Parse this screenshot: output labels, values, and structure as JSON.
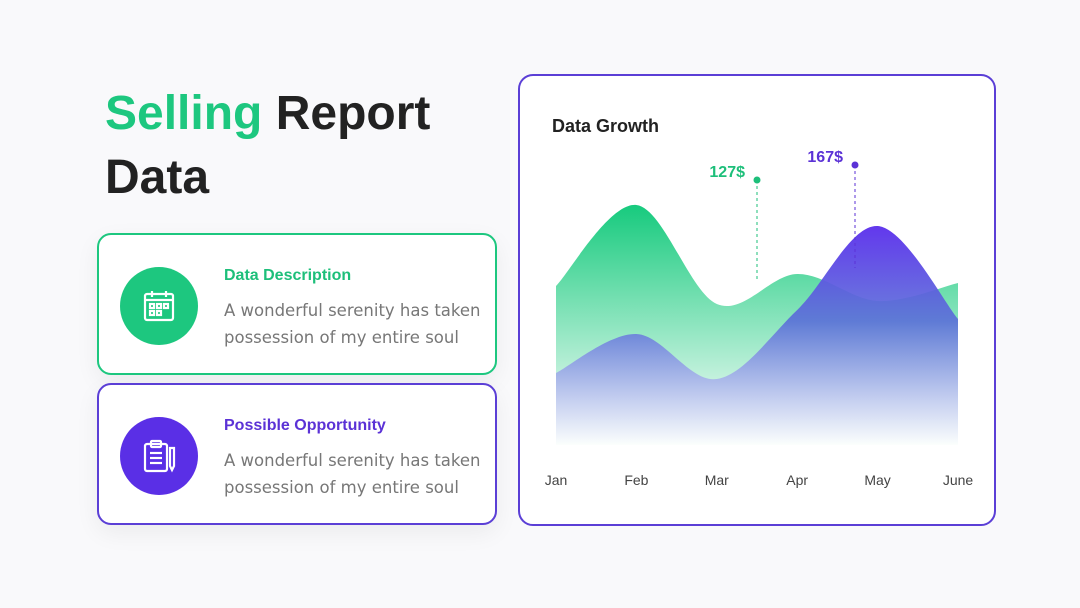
{
  "title": {
    "highlight": "Selling",
    "rest": "Report Data"
  },
  "cards": [
    {
      "title": "Data Description",
      "text": "A wonderful serenity has taken possession of my entire soul"
    },
    {
      "title": "Possible Opportunity",
      "text": "A wonderful serenity has taken possession of my entire soul"
    }
  ],
  "chart_data": {
    "type": "area",
    "title": "Data Growth",
    "categories": [
      "Jan",
      "Feb",
      "Mar",
      "Apr",
      "May",
      "June"
    ],
    "series": [
      {
        "color": "#15cb80",
        "values": [
          53,
          80,
          47,
          57,
          48,
          54
        ]
      },
      {
        "color": "#5b2ee8",
        "values": [
          24,
          37,
          22,
          45,
          73,
          42
        ]
      }
    ],
    "ylim": [
      0,
      100
    ],
    "annotations": [
      {
        "text": "127$",
        "color": "#1dbf7a"
      },
      {
        "text": "167$",
        "color": "#5b32d6"
      }
    ]
  }
}
